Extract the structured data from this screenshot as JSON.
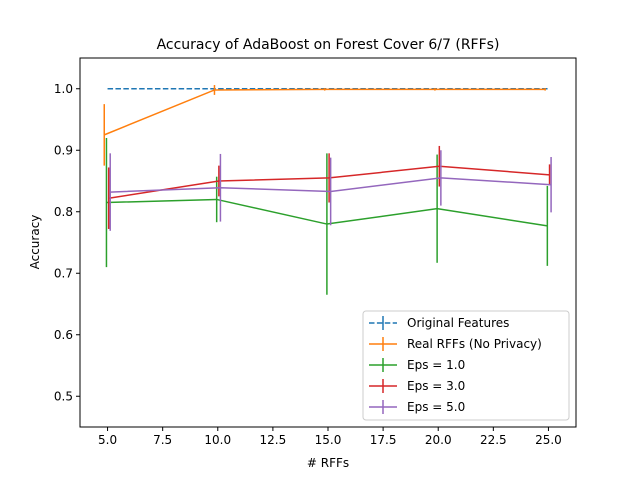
{
  "chart_data": {
    "type": "line",
    "title": "Accuracy of AdaBoost on Forest Cover 6/7 (RFFs)",
    "xlabel": "# RFFs",
    "ylabel": "Accuracy",
    "xlim": [
      3.75,
      26.25
    ],
    "ylim": [
      0.45,
      1.05
    ],
    "xticks": [
      5.0,
      7.5,
      10.0,
      12.5,
      15.0,
      17.5,
      20.0,
      22.5,
      25.0
    ],
    "xtick_labels": [
      "5.0",
      "7.5",
      "10.0",
      "12.5",
      "15.0",
      "17.5",
      "20.0",
      "22.5",
      "25.0"
    ],
    "yticks": [
      0.5,
      0.6,
      0.7,
      0.8,
      0.9,
      1.0
    ],
    "ytick_labels": [
      "0.5",
      "0.6",
      "0.7",
      "0.8",
      "0.9",
      "1.0"
    ],
    "grid": false,
    "legend_position": "bottom-right",
    "x": [
      5,
      10,
      15,
      20,
      25
    ],
    "series": [
      {
        "name": "Original Features",
        "color": "#1f77b4",
        "dashed": true,
        "offset": 0,
        "values": [
          1.0,
          1.0,
          1.0,
          1.0,
          1.0
        ],
        "errors": [
          0.0,
          0.0,
          0.0,
          0.0,
          0.0
        ]
      },
      {
        "name": "Real RFFs (No Privacy)",
        "color": "#ff7f0e",
        "dashed": false,
        "offset": -0.15,
        "values": [
          0.925,
          0.998,
          0.999,
          0.999,
          0.999
        ],
        "errors": [
          0.05,
          0.008,
          0.002,
          0.002,
          0.002
        ]
      },
      {
        "name": "Eps = 1.0",
        "color": "#2ca02c",
        "dashed": false,
        "offset": -0.05,
        "values": [
          0.815,
          0.82,
          0.78,
          0.805,
          0.777
        ],
        "errors": [
          0.105,
          0.037,
          0.115,
          0.088,
          0.065
        ]
      },
      {
        "name": "Eps = 3.0",
        "color": "#d62728",
        "dashed": false,
        "offset": 0.05,
        "values": [
          0.822,
          0.85,
          0.855,
          0.874,
          0.86
        ],
        "errors": [
          0.05,
          0.025,
          0.04,
          0.033,
          0.017
        ]
      },
      {
        "name": "Eps = 5.0",
        "color": "#9467bd",
        "dashed": false,
        "offset": 0.12,
        "values": [
          0.832,
          0.839,
          0.833,
          0.855,
          0.844
        ],
        "errors": [
          0.063,
          0.055,
          0.055,
          0.045,
          0.045
        ]
      }
    ]
  }
}
